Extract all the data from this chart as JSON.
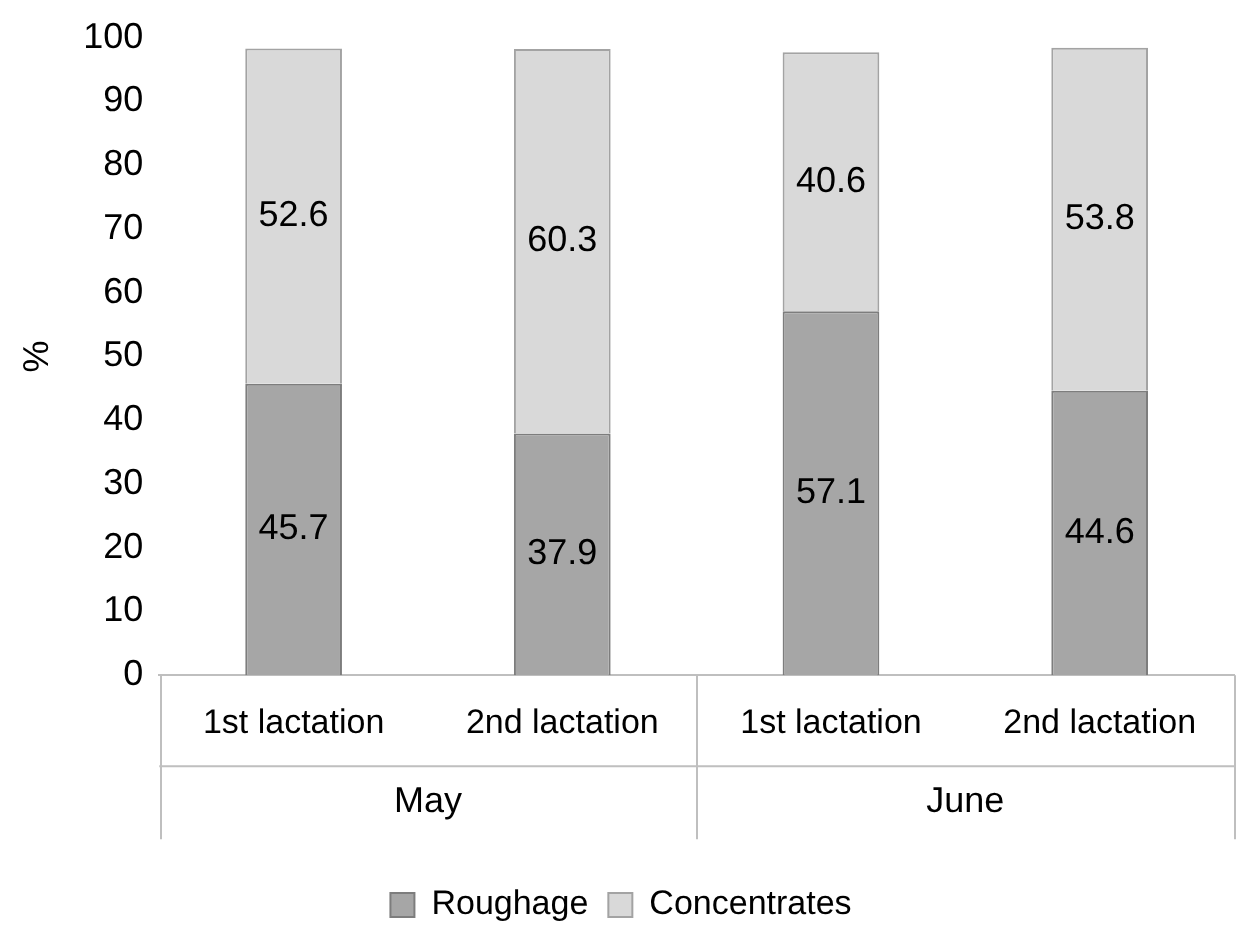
{
  "chart_data": {
    "type": "bar",
    "stacked": true,
    "ylabel": "%",
    "categories": [
      "1st lactation",
      "2nd lactation",
      "1st lactation",
      "2nd lactation"
    ],
    "annotations": [
      "May",
      "June"
    ],
    "series": [
      {
        "name": "Roughage",
        "color": "#a6a6a6",
        "values": [
          45.7,
          37.9,
          57.1,
          44.6
        ]
      },
      {
        "name": "Concentrates",
        "color": "#d9d9d9",
        "values": [
          52.6,
          60.3,
          40.6,
          53.8
        ]
      }
    ],
    "ylim": [
      0,
      100
    ],
    "yticks": [
      0,
      10,
      20,
      30,
      40,
      50,
      60,
      70,
      80,
      90,
      100
    ],
    "data_labels": true,
    "grid": false,
    "legend": "bottom"
  }
}
